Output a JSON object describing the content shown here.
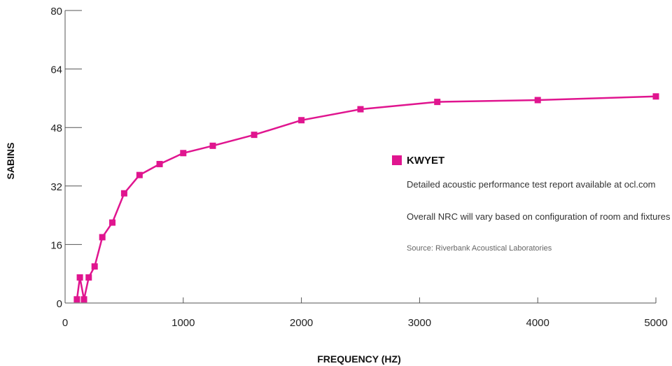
{
  "chart_data": {
    "type": "line",
    "title": "",
    "xlabel": "FREQUENCY (HZ)",
    "ylabel": "SABINS",
    "xlim": [
      0,
      5000
    ],
    "ylim": [
      0,
      80
    ],
    "xticks": [
      0,
      1000,
      2000,
      3000,
      4000,
      5000
    ],
    "yticks": [
      0,
      16,
      32,
      48,
      64,
      80
    ],
    "grid": false,
    "legend_position": "right",
    "series": [
      {
        "name": "KWYET",
        "color": "#e0158f",
        "x": [
          100,
          125,
          160,
          200,
          250,
          315,
          400,
          500,
          630,
          800,
          1000,
          1250,
          1600,
          2000,
          2500,
          3150,
          4000,
          5000
        ],
        "y": [
          1,
          7,
          1,
          7,
          10,
          18,
          22,
          30,
          35,
          38,
          41,
          43,
          46,
          50,
          53,
          55,
          55.5,
          56.5
        ]
      }
    ],
    "annotations": [
      "Detailed acoustic performance test report available at ocl.com",
      "Overall NRC will vary based on configuration of room and fixtures",
      "Source: Riverbank Acoustical Laboratories"
    ]
  },
  "colors": {
    "axis": "#555555",
    "series": "#e0158f"
  }
}
